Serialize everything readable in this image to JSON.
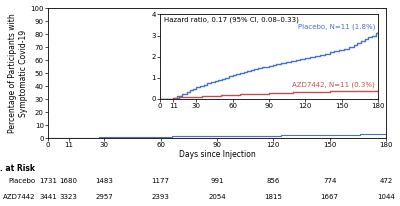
{
  "chart_data": [
    {
      "type": "step",
      "xlabel": "Days since Injection",
      "ylabel": "Percentage of Participants with\nSymptomatic Covid-19",
      "xlim": [
        0,
        180
      ],
      "ylim": [
        0,
        100
      ],
      "xticks": [
        0,
        11,
        30,
        60,
        90,
        120,
        150,
        180
      ],
      "yticks": [
        0,
        10,
        20,
        30,
        40,
        50,
        60,
        70,
        80,
        90,
        100
      ],
      "series": [
        {
          "color": "#4472C4",
          "x": [
            0,
            11,
            14,
            18,
            22,
            25,
            27,
            30,
            33,
            36,
            39,
            42,
            45,
            48,
            51,
            54,
            57,
            60,
            63,
            66,
            69,
            72,
            75,
            78,
            81,
            84,
            87,
            90,
            93,
            96,
            100,
            104,
            108,
            112,
            116,
            120,
            124,
            128,
            132,
            136,
            140,
            144,
            148,
            152,
            156,
            160,
            163,
            166,
            169,
            172,
            175,
            178,
            180
          ],
          "values": [
            0,
            0.06,
            0.12,
            0.22,
            0.33,
            0.4,
            0.46,
            0.55,
            0.62,
            0.68,
            0.74,
            0.8,
            0.85,
            0.91,
            0.96,
            1.01,
            1.06,
            1.11,
            1.16,
            1.21,
            1.26,
            1.31,
            1.36,
            1.41,
            1.46,
            1.5,
            1.53,
            1.57,
            1.61,
            1.65,
            1.7,
            1.75,
            1.8,
            1.84,
            1.88,
            1.92,
            1.97,
            2.02,
            2.08,
            2.14,
            2.2,
            2.26,
            2.32,
            2.38,
            2.46,
            2.55,
            2.65,
            2.75,
            2.84,
            2.92,
            3.0,
            3.1,
            3.15
          ]
        },
        {
          "color": "#C0504D",
          "x": [
            0,
            11,
            16,
            22,
            28,
            35,
            42,
            50,
            58,
            66,
            74,
            82,
            90,
            100,
            110,
            120,
            130,
            140,
            150,
            160,
            170,
            180
          ],
          "values": [
            0,
            0.05,
            0.07,
            0.09,
            0.11,
            0.13,
            0.15,
            0.17,
            0.19,
            0.21,
            0.23,
            0.25,
            0.27,
            0.29,
            0.31,
            0.33,
            0.34,
            0.36,
            0.37,
            0.38,
            0.39,
            0.4
          ]
        }
      ]
    },
    {
      "type": "step",
      "xlim": [
        0,
        180
      ],
      "ylim": [
        0,
        4
      ],
      "xticks": [
        0,
        11,
        30,
        60,
        90,
        120,
        150,
        180
      ],
      "yticks": [
        0,
        1,
        2,
        3,
        4
      ],
      "annotations": [
        "Hazard ratio, 0.17 (95% CI, 0.08–0.33)"
      ],
      "series": [
        {
          "name": "Placebo, N=11 (1.8%)",
          "color": "#4472C4",
          "x": [
            0,
            11,
            14,
            18,
            22,
            25,
            27,
            30,
            33,
            36,
            39,
            42,
            45,
            48,
            51,
            54,
            57,
            60,
            63,
            66,
            69,
            72,
            75,
            78,
            81,
            84,
            87,
            90,
            93,
            96,
            100,
            104,
            108,
            112,
            116,
            120,
            124,
            128,
            132,
            136,
            140,
            144,
            148,
            152,
            156,
            160,
            163,
            166,
            169,
            172,
            175,
            178,
            180
          ],
          "values": [
            0,
            0.06,
            0.12,
            0.22,
            0.33,
            0.4,
            0.46,
            0.55,
            0.62,
            0.68,
            0.74,
            0.8,
            0.85,
            0.91,
            0.96,
            1.01,
            1.06,
            1.11,
            1.16,
            1.21,
            1.26,
            1.31,
            1.36,
            1.41,
            1.46,
            1.5,
            1.53,
            1.57,
            1.61,
            1.65,
            1.7,
            1.75,
            1.8,
            1.84,
            1.88,
            1.92,
            1.97,
            2.02,
            2.08,
            2.14,
            2.2,
            2.26,
            2.32,
            2.38,
            2.46,
            2.55,
            2.65,
            2.75,
            2.84,
            2.92,
            3.0,
            3.1,
            3.15
          ]
        },
        {
          "name": "AZD7442, N=11 (0.3%)",
          "color": "#C0504D",
          "x": [
            0,
            11,
            16,
            22,
            28,
            35,
            42,
            50,
            58,
            66,
            74,
            82,
            90,
            100,
            110,
            120,
            130,
            140,
            150,
            160,
            170,
            180
          ],
          "values": [
            0,
            0.05,
            0.07,
            0.09,
            0.11,
            0.13,
            0.15,
            0.17,
            0.19,
            0.21,
            0.23,
            0.25,
            0.27,
            0.29,
            0.31,
            0.33,
            0.34,
            0.36,
            0.37,
            0.38,
            0.39,
            0.4
          ]
        }
      ]
    },
    {
      "type": "table",
      "title": "No. at Risk",
      "x": [
        0,
        11,
        30,
        60,
        90,
        120,
        150,
        180
      ],
      "series": [
        {
          "name": "Placebo",
          "values": [
            1731,
            1680,
            1483,
            1177,
            991,
            856,
            774,
            472
          ]
        },
        {
          "name": "AZD7442",
          "values": [
            3441,
            3323,
            2957,
            2393,
            2054,
            1815,
            1667,
            1044
          ]
        }
      ]
    }
  ]
}
